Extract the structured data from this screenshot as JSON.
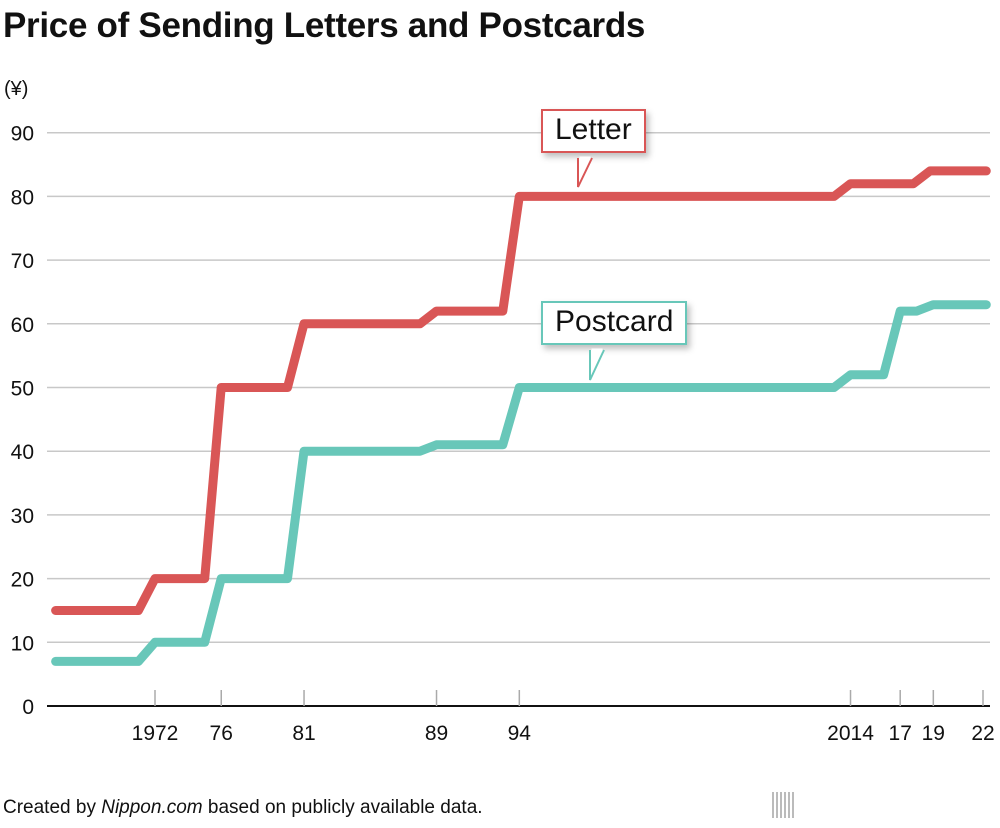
{
  "title": "Price of Sending Letters and Postcards",
  "footer": {
    "prefix": "Created by ",
    "source": "Nippon.com",
    "suffix": " based on publicly available data."
  },
  "logo": {
    "text": "nippon",
    "dot": ".",
    "com": "com"
  },
  "chart_data": {
    "type": "line",
    "title": "Price of Sending Letters and Postcards",
    "ylabel": "(¥)",
    "xlabel": "",
    "ylim": [
      0,
      90
    ],
    "xlim": [
      1965.5,
      2022.5
    ],
    "yticks": [
      0,
      10,
      20,
      30,
      40,
      50,
      60,
      70,
      80,
      90
    ],
    "xticks": [
      {
        "year": 1972,
        "label": "1972"
      },
      {
        "year": 1976,
        "label": "76"
      },
      {
        "year": 1981,
        "label": "81"
      },
      {
        "year": 1989,
        "label": "89"
      },
      {
        "year": 1994,
        "label": "94"
      },
      {
        "year": 2014,
        "label": "2014"
      },
      {
        "year": 2017,
        "label": "17"
      },
      {
        "year": 2019,
        "label": "19"
      },
      {
        "year": 2022,
        "label": "22"
      }
    ],
    "grid": true,
    "series": [
      {
        "name": "Letter",
        "color": "#d95656",
        "points": [
          [
            1966,
            15
          ],
          [
            1971,
            15
          ],
          [
            1972,
            20
          ],
          [
            1975,
            20
          ],
          [
            1976,
            50
          ],
          [
            1980,
            50
          ],
          [
            1981,
            60
          ],
          [
            1988,
            60
          ],
          [
            1989,
            62
          ],
          [
            1993,
            62
          ],
          [
            1994,
            80
          ],
          [
            2013,
            80
          ],
          [
            2014,
            82
          ],
          [
            2017.8,
            82
          ],
          [
            2018.8,
            84
          ],
          [
            2022.2,
            84
          ]
        ]
      },
      {
        "name": "Postcard",
        "color": "#68c7b9",
        "points": [
          [
            1966,
            7
          ],
          [
            1971,
            7
          ],
          [
            1972,
            10
          ],
          [
            1975,
            10
          ],
          [
            1976,
            20
          ],
          [
            1980,
            20
          ],
          [
            1981,
            40
          ],
          [
            1988,
            40
          ],
          [
            1989,
            41
          ],
          [
            1993,
            41
          ],
          [
            1994,
            50
          ],
          [
            2013,
            50
          ],
          [
            2014,
            52
          ],
          [
            2016,
            52
          ],
          [
            2017,
            62
          ],
          [
            2018,
            62
          ],
          [
            2019,
            63
          ],
          [
            2022.2,
            63
          ]
        ]
      }
    ]
  }
}
